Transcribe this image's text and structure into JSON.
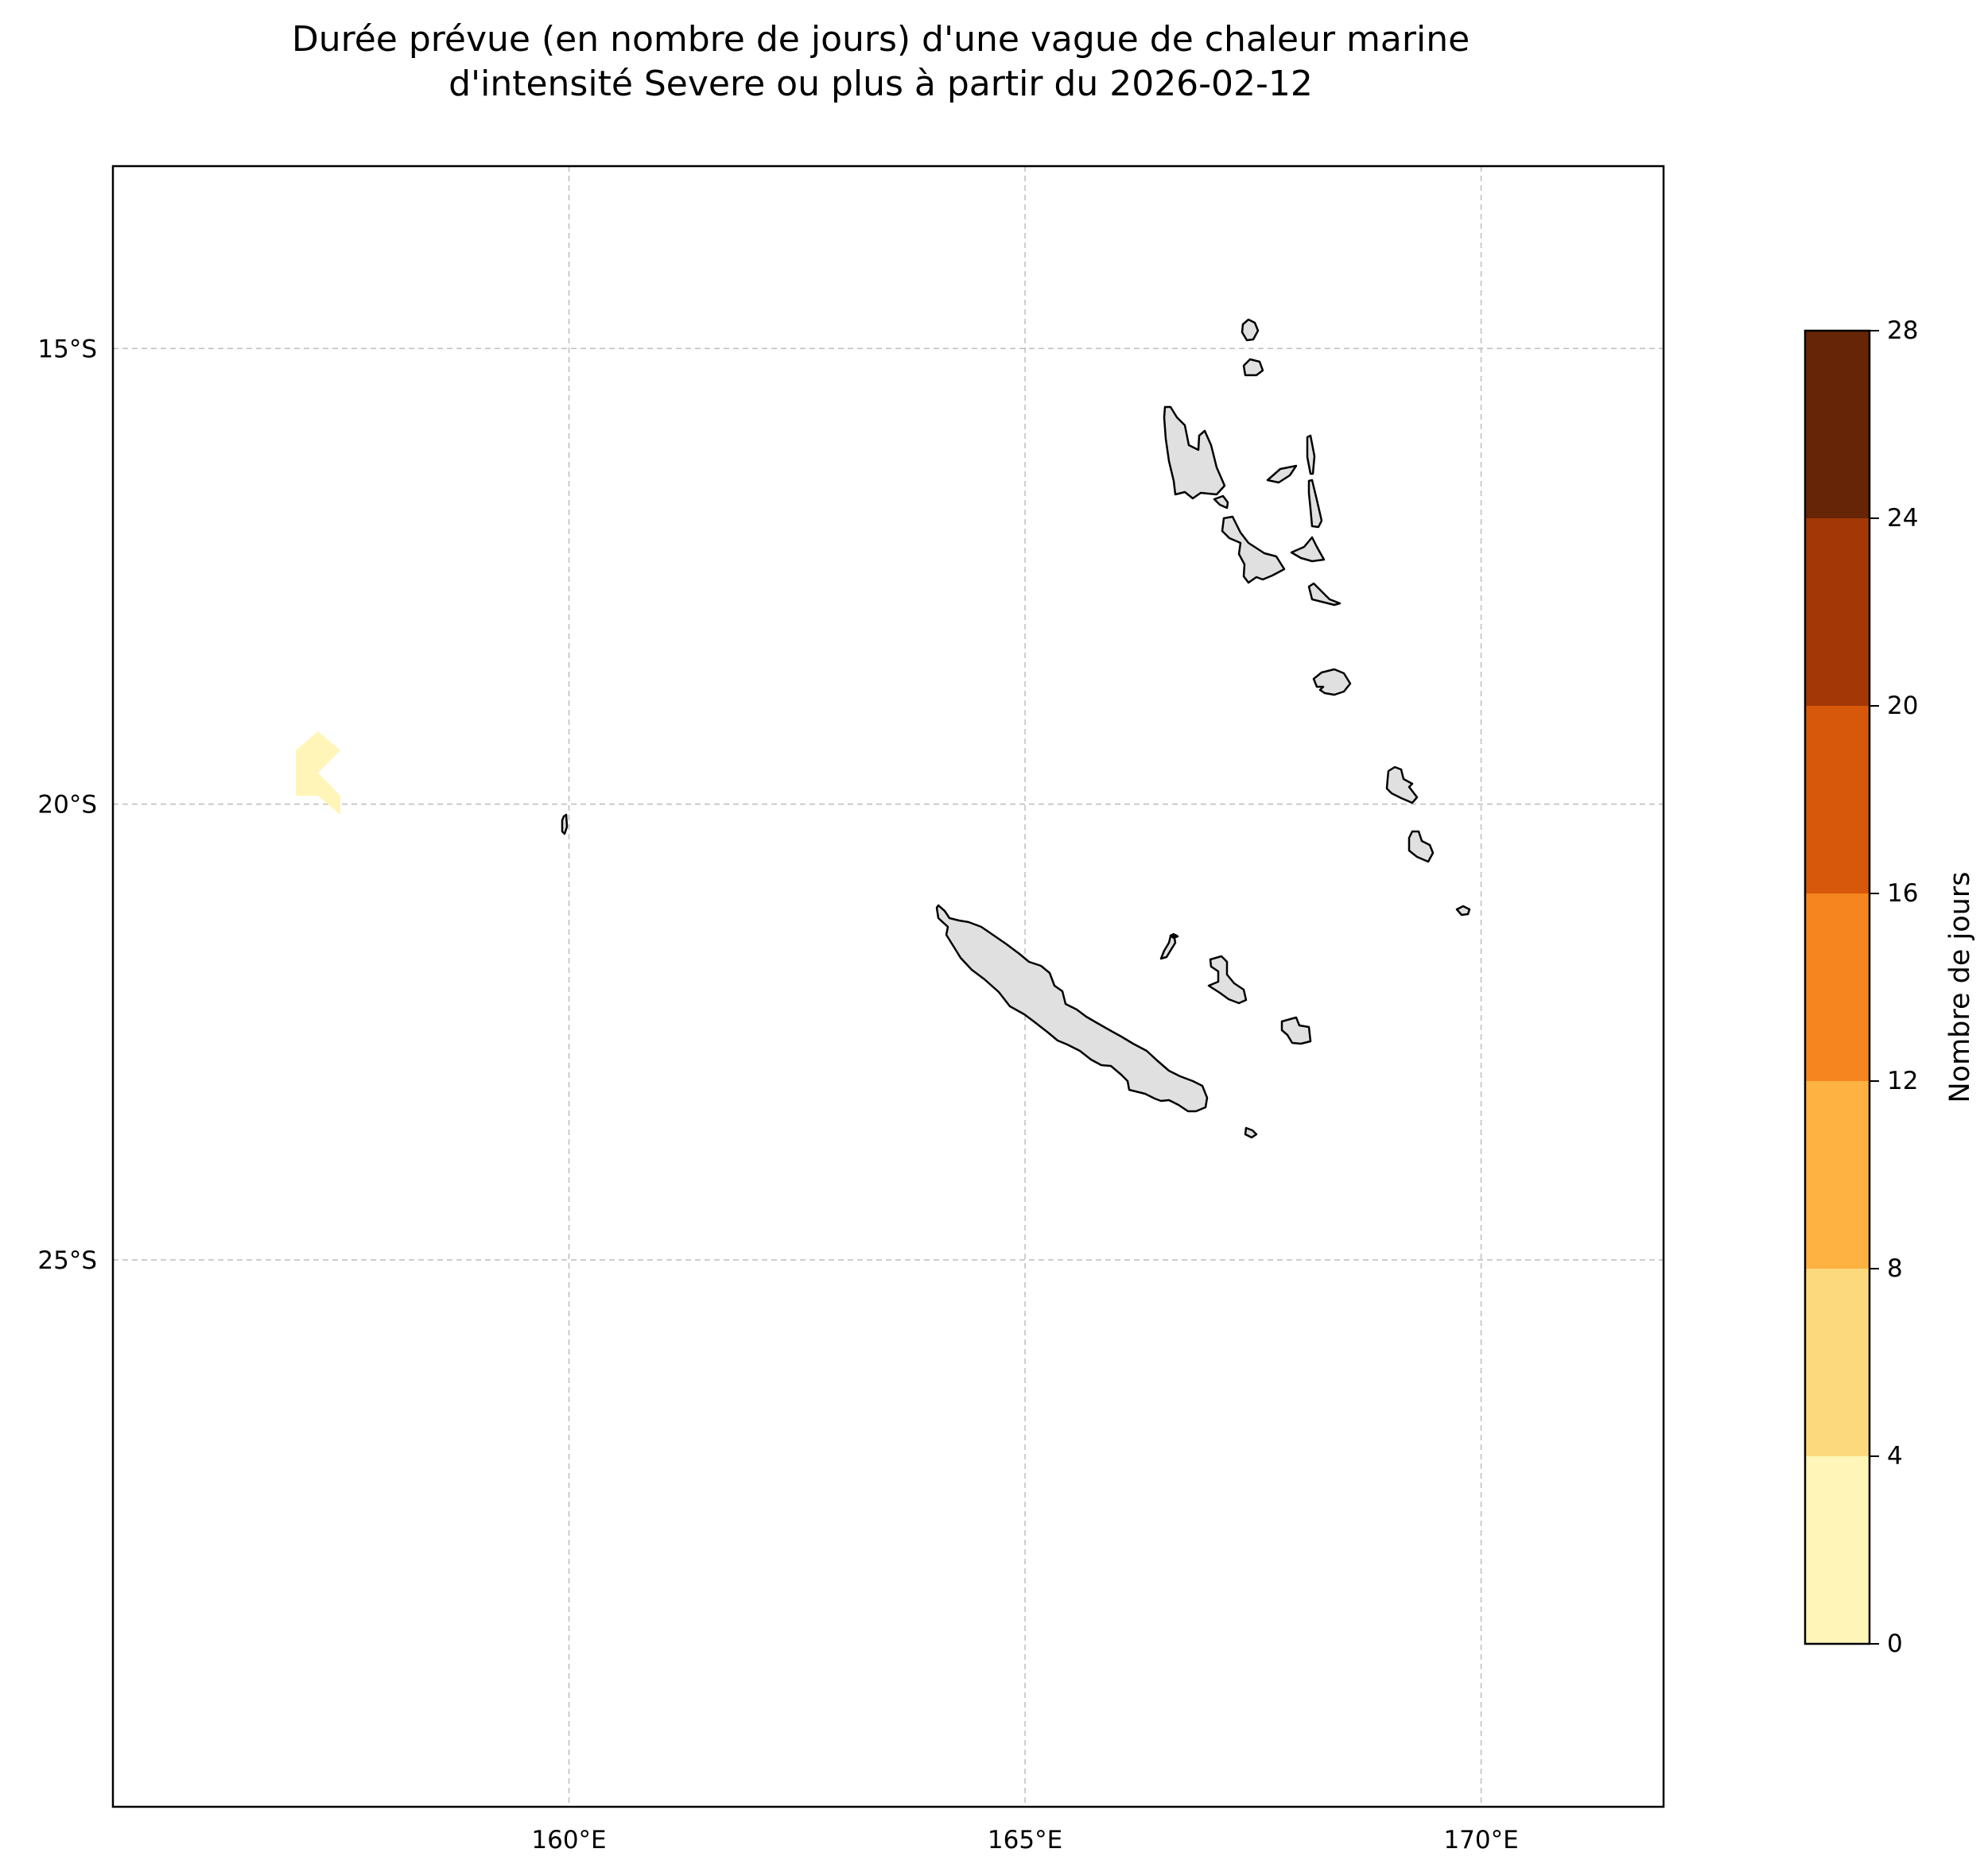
{
  "title": {
    "line1": "Durée prévue (en nombre de jours) d'une vague de chaleur marine",
    "line2": "d'intensité Severe ou plus à partir du 2026-02-12"
  },
  "map": {
    "lon_range": [
      155,
      172
    ],
    "lat_range": [
      -31,
      -13
    ],
    "lon_ticks": [
      {
        "value": 160,
        "label": "160°E"
      },
      {
        "value": 165,
        "label": "165°E"
      },
      {
        "value": 170,
        "label": "170°E"
      }
    ],
    "lat_ticks": [
      {
        "value": -15,
        "label": "15°S"
      },
      {
        "value": -20,
        "label": "20°S"
      },
      {
        "value": -25,
        "label": "25°S"
      }
    ],
    "gridlines": true,
    "land_color": "#e0e0e0",
    "coastline_color": "#000000"
  },
  "colorbar": {
    "label": "Nombre de jours",
    "ticks": [
      {
        "value": 0,
        "label": "0"
      },
      {
        "value": 4,
        "label": "4"
      },
      {
        "value": 8,
        "label": "8"
      },
      {
        "value": 12,
        "label": "12"
      },
      {
        "value": 16,
        "label": "16"
      },
      {
        "value": 20,
        "label": "20"
      },
      {
        "value": 24,
        "label": "24"
      },
      {
        "value": 28,
        "label": "28"
      }
    ],
    "range": [
      0,
      28
    ],
    "colors": [
      "#fff5b8",
      "#fdd97d",
      "#feb242",
      "#f6851f",
      "#d7580b",
      "#a33806",
      "#662506"
    ]
  },
  "heatwave_patch": {
    "duration_bin": [
      0,
      4
    ],
    "color": "#fff5b8"
  }
}
